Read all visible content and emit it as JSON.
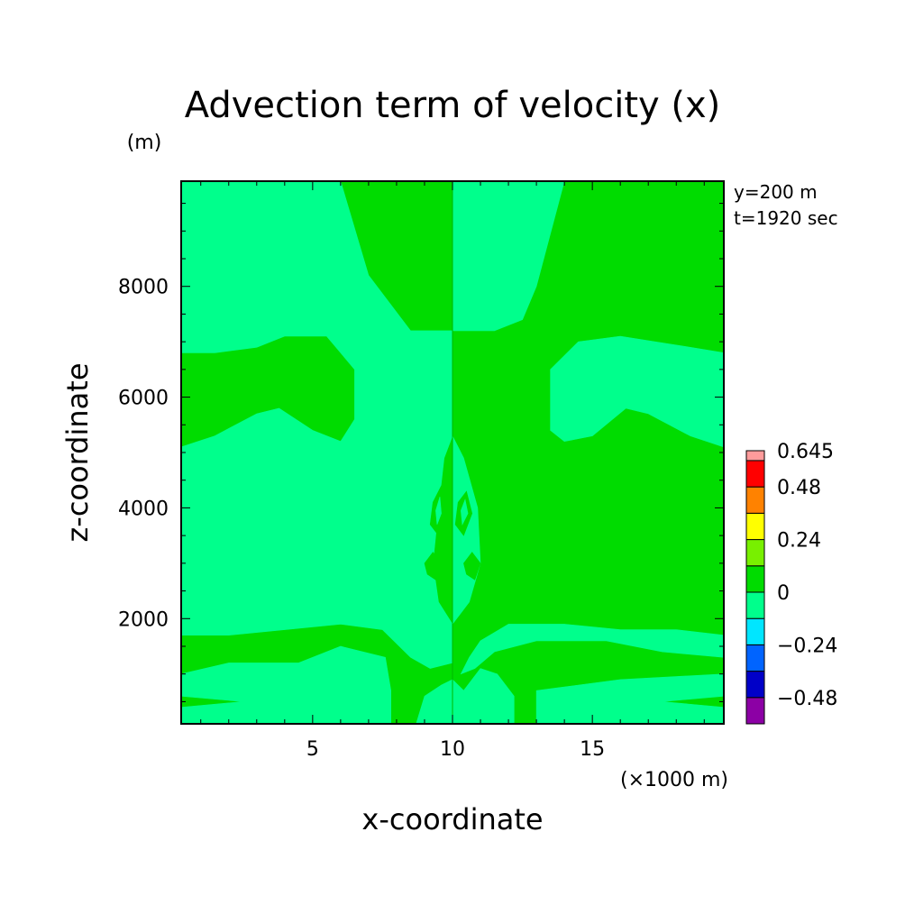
{
  "chart_data": {
    "type": "heatmap",
    "title": "Advection term of velocity (x)",
    "ylabel": "z-coordinate",
    "yunit": "(m)",
    "xlabel": "x-coordinate",
    "xunit": "(×1000 m)",
    "annotations": [
      "y=200 m",
      "t=1920 sec"
    ],
    "xlim": [
      0.3,
      19.7
    ],
    "ylim": [
      100,
      9900
    ],
    "x_ticks": [
      5,
      10,
      15
    ],
    "x_tick_labels": [
      "5",
      "10",
      "15"
    ],
    "y_ticks": [
      2000,
      4000,
      6000,
      8000
    ],
    "y_tick_labels": [
      "2000",
      "4000",
      "6000",
      "8000"
    ],
    "colorbar": {
      "levels": [
        -0.6,
        -0.48,
        -0.36,
        -0.24,
        -0.12,
        0,
        0.12,
        0.24,
        0.36,
        0.48,
        0.6,
        0.645
      ],
      "colors": [
        "#8c00a5",
        "#0000c8",
        "#0064ff",
        "#00e6ff",
        "#00ff8c",
        "#00dc00",
        "#78f000",
        "#ffff00",
        "#ff8200",
        "#ff0000",
        "#ff9b9b"
      ],
      "tick_labels": [
        "0.645",
        "0.48",
        "0.24",
        "0",
        "−0.24",
        "−0.48"
      ],
      "tick_values": [
        0.645,
        0.48,
        0.24,
        0,
        -0.24,
        -0.48
      ]
    },
    "background_class": "0 to 0.12",
    "regions": [
      {
        "class": "-0.12 to 0",
        "color": "#00ff8c",
        "points": [
          [
            6.0,
            9900
          ],
          [
            7.0,
            8200
          ],
          [
            8.5,
            7200
          ],
          [
            10.0,
            7200
          ],
          [
            10.0,
            5300
          ],
          [
            9.7,
            4900
          ],
          [
            9.5,
            4000
          ],
          [
            9.3,
            3000
          ],
          [
            9.5,
            2300
          ],
          [
            10.0,
            1900
          ],
          [
            10.0,
            1200
          ],
          [
            9.2,
            1100
          ],
          [
            8.5,
            1300
          ],
          [
            7.5,
            1800
          ],
          [
            6.0,
            1900
          ],
          [
            4.0,
            1800
          ],
          [
            2.0,
            1700
          ],
          [
            0.3,
            1700
          ],
          [
            0.3,
            5100
          ],
          [
            1.5,
            5300
          ],
          [
            3.0,
            5700
          ],
          [
            3.8,
            5800
          ],
          [
            5.0,
            5400
          ],
          [
            6.0,
            5200
          ],
          [
            6.5,
            5600
          ],
          [
            6.5,
            6500
          ],
          [
            5.5,
            7100
          ],
          [
            4.0,
            7100
          ],
          [
            3.0,
            6900
          ],
          [
            1.5,
            6800
          ],
          [
            0.3,
            6800
          ],
          [
            0.3,
            9900
          ]
        ]
      },
      {
        "class": "-0.12 to 0",
        "color": "#00ff8c",
        "points": [
          [
            10.0,
            9900
          ],
          [
            14.0,
            9900
          ],
          [
            13.0,
            8000
          ],
          [
            12.5,
            7400
          ],
          [
            11.5,
            7200
          ],
          [
            10.0,
            7200
          ]
        ]
      },
      {
        "class": "-0.12 to 0",
        "color": "#00ff8c",
        "points": [
          [
            10.0,
            5300
          ],
          [
            10.4,
            4900
          ],
          [
            10.9,
            4000
          ],
          [
            11.0,
            3000
          ],
          [
            10.6,
            2300
          ],
          [
            10.0,
            1900
          ]
        ]
      },
      {
        "class": "-0.12 to 0",
        "color": "#00ff8c",
        "points": [
          [
            13.5,
            5400
          ],
          [
            14.0,
            5200
          ],
          [
            15.0,
            5300
          ],
          [
            16.2,
            5800
          ],
          [
            17.0,
            5700
          ],
          [
            18.5,
            5300
          ],
          [
            19.7,
            5100
          ],
          [
            19.7,
            6800
          ],
          [
            18.5,
            6900
          ],
          [
            16.0,
            7100
          ],
          [
            14.5,
            7000
          ],
          [
            13.5,
            6500
          ]
        ]
      },
      {
        "class": "-0.12 to 0",
        "color": "#00ff8c",
        "points": [
          [
            11.0,
            1600
          ],
          [
            12.0,
            1900
          ],
          [
            14.0,
            1900
          ],
          [
            16.0,
            1800
          ],
          [
            18.0,
            1800
          ],
          [
            19.7,
            1700
          ],
          [
            19.7,
            1300
          ],
          [
            17.5,
            1400
          ],
          [
            15.5,
            1600
          ],
          [
            13.0,
            1600
          ],
          [
            11.5,
            1400
          ],
          [
            10.8,
            1100
          ],
          [
            10.3,
            1000
          ],
          [
            10.6,
            1300
          ]
        ]
      },
      {
        "class": "-0.12 to 0",
        "color": "#00ff8c",
        "points": [
          [
            0.3,
            1000
          ],
          [
            2.0,
            1200
          ],
          [
            4.5,
            1200
          ],
          [
            6.0,
            1500
          ],
          [
            7.6,
            1300
          ],
          [
            7.8,
            700
          ],
          [
            7.8,
            100
          ],
          [
            0.3,
            100
          ],
          [
            0.3,
            400
          ],
          [
            2.5,
            500
          ],
          [
            0.3,
            600
          ]
        ]
      },
      {
        "class": "-0.12 to 0",
        "color": "#00ff8c",
        "points": [
          [
            8.7,
            100
          ],
          [
            9.0,
            600
          ],
          [
            9.6,
            800
          ],
          [
            10.0,
            900
          ],
          [
            10.4,
            700
          ],
          [
            11.0,
            1100
          ],
          [
            11.6,
            1000
          ],
          [
            12.2,
            600
          ],
          [
            12.2,
            100
          ]
        ]
      },
      {
        "class": "-0.12 to 0",
        "color": "#00ff8c",
        "points": [
          [
            13.0,
            100
          ],
          [
            13.0,
            700
          ],
          [
            16.0,
            900
          ],
          [
            19.7,
            1000
          ],
          [
            19.7,
            600
          ],
          [
            17.5,
            500
          ],
          [
            19.7,
            400
          ],
          [
            19.7,
            100
          ]
        ]
      },
      {
        "class": "0 to 0.12",
        "color": "#00dc00",
        "points": [
          [
            9.3,
            4100
          ],
          [
            9.6,
            4400
          ],
          [
            9.7,
            3900
          ],
          [
            9.5,
            3500
          ],
          [
            9.2,
            3700
          ]
        ]
      },
      {
        "class": "0 to 0.12",
        "color": "#00dc00",
        "points": [
          [
            10.2,
            4100
          ],
          [
            10.5,
            4300
          ],
          [
            10.7,
            3900
          ],
          [
            10.4,
            3500
          ],
          [
            10.1,
            3700
          ]
        ]
      },
      {
        "class": "-0.12 to 0",
        "color": "#00ff8c",
        "points": [
          [
            9.4,
            3950
          ],
          [
            9.55,
            4200
          ],
          [
            9.6,
            3900
          ],
          [
            9.45,
            3700
          ]
        ]
      },
      {
        "class": "-0.12 to 0",
        "color": "#00ff8c",
        "points": [
          [
            10.3,
            3950
          ],
          [
            10.45,
            4150
          ],
          [
            10.55,
            3900
          ],
          [
            10.35,
            3700
          ]
        ]
      },
      {
        "class": "0 to 0.12",
        "color": "#00dc00",
        "points": [
          [
            9.0,
            3000
          ],
          [
            9.3,
            3200
          ],
          [
            9.6,
            3000
          ],
          [
            9.4,
            2700
          ],
          [
            9.1,
            2800
          ]
        ]
      },
      {
        "class": "0 to 0.12",
        "color": "#00dc00",
        "points": [
          [
            10.4,
            3000
          ],
          [
            10.7,
            3200
          ],
          [
            11.0,
            3000
          ],
          [
            10.8,
            2700
          ],
          [
            10.5,
            2800
          ]
        ]
      }
    ]
  }
}
